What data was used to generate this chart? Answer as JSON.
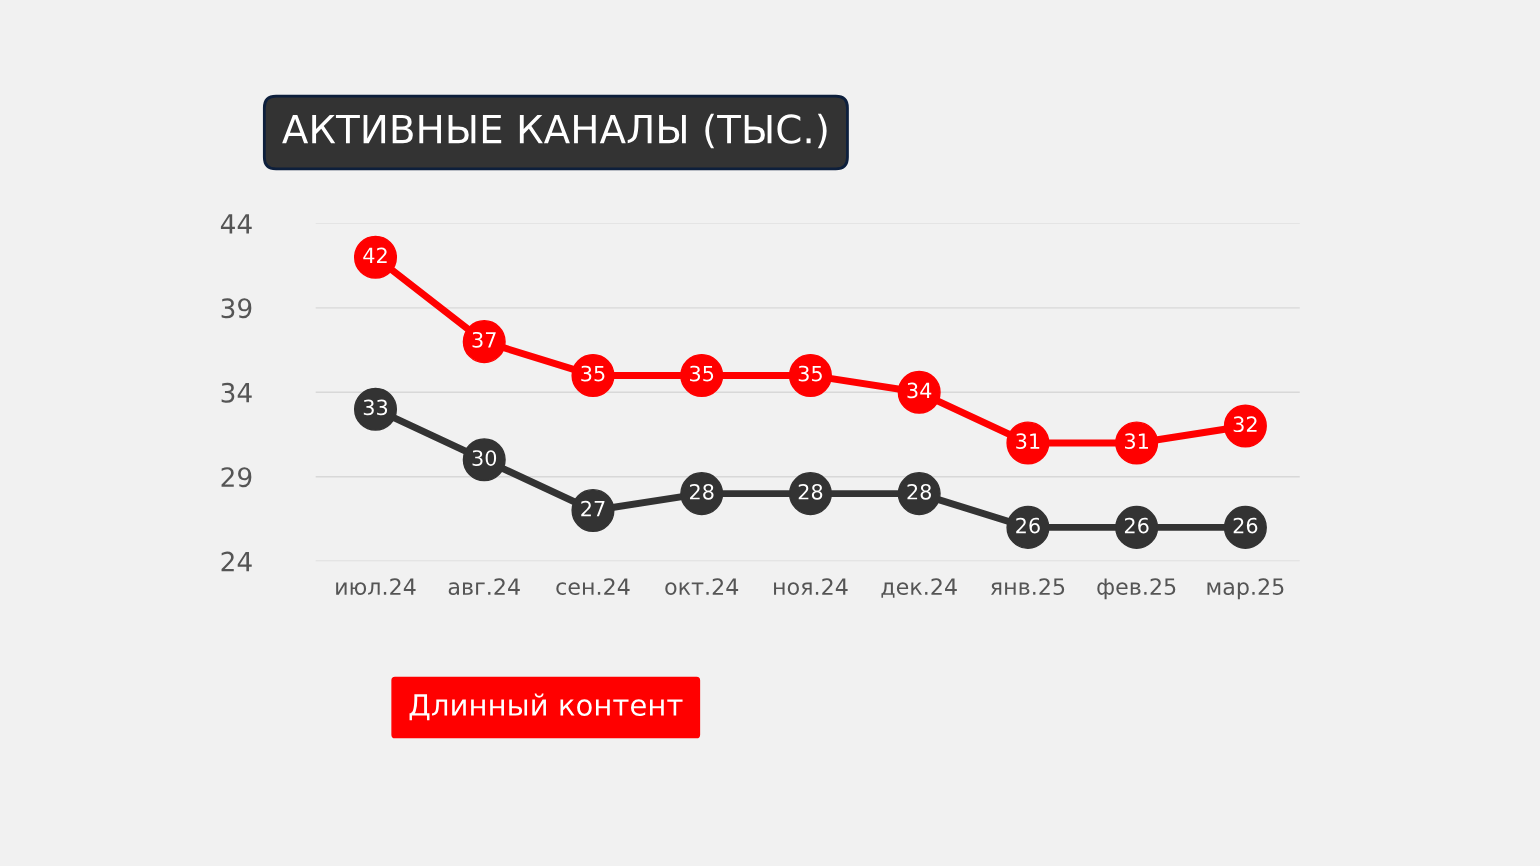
{
  "chart_data": {
    "type": "line",
    "title": "АКТИВНЫЕ КАНАЛЫ (ТЫС.)",
    "categories": [
      "июл.24",
      "авг.24",
      "сен.24",
      "окт.24",
      "ноя.24",
      "дек.24",
      "янв.25",
      "фев.25",
      "мар.25"
    ],
    "series": [
      {
        "color": "#333333",
        "values": [
          33,
          30,
          27,
          28,
          28,
          28,
          26,
          26,
          26
        ]
      },
      {
        "name": "Длинный контент",
        "color": "#ff0000",
        "values": [
          42,
          37,
          35,
          35,
          35,
          34,
          31,
          31,
          32
        ]
      }
    ],
    "ylim": [
      24,
      44
    ],
    "yticks": [
      24,
      29,
      34,
      39,
      44
    ],
    "grid": "y",
    "legend": "bottom left",
    "marker": "circle",
    "line_style": "solid",
    "data_labels": true
  }
}
